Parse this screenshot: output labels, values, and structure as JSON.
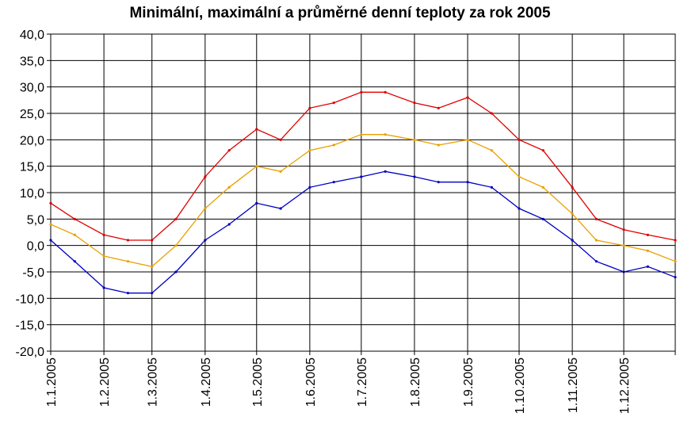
{
  "chart_data": {
    "type": "line",
    "title": "Minimální, maximální a průměrné denní teploty za rok 2005",
    "xlabel": "",
    "ylabel": "",
    "ylim": [
      -20,
      40
    ],
    "yticks": [
      "-20,0",
      "-15,0",
      "-10,0",
      "-5,0",
      "0,0",
      "5,0",
      "10,0",
      "15,0",
      "20,0",
      "25,0",
      "30,0",
      "35,0",
      "40,0"
    ],
    "x_range": [
      "1.1.2005",
      "31.12.2005"
    ],
    "x_tick_labels": [
      "1.1.2005",
      "1.2.2005",
      "1.3.2005",
      "1.4.2005",
      "1.5.2005",
      "1.6.2005",
      "1.7.2005",
      "1.8.2005",
      "1.9.2005",
      "1.10.2005",
      "1.11.2005",
      "1.12.2005"
    ],
    "grid": true,
    "colors": {
      "max": "#e00000",
      "avg": "#e8a000",
      "min": "#0000c0"
    },
    "series_meta": [
      {
        "key": "max",
        "color": "#e00000"
      },
      {
        "key": "avg",
        "color": "#e8a000"
      },
      {
        "key": "min",
        "color": "#0000c0"
      }
    ],
    "monthly_max": [
      {
        "x": "1.1.2005",
        "y": 8
      },
      {
        "x": "15.1.2005",
        "y": 5
      },
      {
        "x": "1.2.2005",
        "y": 2
      },
      {
        "x": "15.2.2005",
        "y": 1
      },
      {
        "x": "1.3.2005",
        "y": 1
      },
      {
        "x": "15.3.2005",
        "y": 5
      },
      {
        "x": "1.4.2005",
        "y": 13
      },
      {
        "x": "15.4.2005",
        "y": 18
      },
      {
        "x": "1.5.2005",
        "y": 22
      },
      {
        "x": "15.5.2005",
        "y": 20
      },
      {
        "x": "1.6.2005",
        "y": 26
      },
      {
        "x": "15.6.2005",
        "y": 27
      },
      {
        "x": "1.7.2005",
        "y": 29
      },
      {
        "x": "15.7.2005",
        "y": 29
      },
      {
        "x": "1.8.2005",
        "y": 27
      },
      {
        "x": "15.8.2005",
        "y": 26
      },
      {
        "x": "1.9.2005",
        "y": 28
      },
      {
        "x": "15.9.2005",
        "y": 25
      },
      {
        "x": "1.10.2005",
        "y": 20
      },
      {
        "x": "15.10.2005",
        "y": 18
      },
      {
        "x": "1.11.2005",
        "y": 11
      },
      {
        "x": "15.11.2005",
        "y": 5
      },
      {
        "x": "1.12.2005",
        "y": 3
      },
      {
        "x": "15.12.2005",
        "y": 2
      },
      {
        "x": "31.12.2005",
        "y": 1
      }
    ],
    "monthly_avg": [
      {
        "x": "1.1.2005",
        "y": 4
      },
      {
        "x": "15.1.2005",
        "y": 2
      },
      {
        "x": "1.2.2005",
        "y": -2
      },
      {
        "x": "15.2.2005",
        "y": -3
      },
      {
        "x": "1.3.2005",
        "y": -4
      },
      {
        "x": "15.3.2005",
        "y": 0
      },
      {
        "x": "1.4.2005",
        "y": 7
      },
      {
        "x": "15.4.2005",
        "y": 11
      },
      {
        "x": "1.5.2005",
        "y": 15
      },
      {
        "x": "15.5.2005",
        "y": 14
      },
      {
        "x": "1.6.2005",
        "y": 18
      },
      {
        "x": "15.6.2005",
        "y": 19
      },
      {
        "x": "1.7.2005",
        "y": 21
      },
      {
        "x": "15.7.2005",
        "y": 21
      },
      {
        "x": "1.8.2005",
        "y": 20
      },
      {
        "x": "15.8.2005",
        "y": 19
      },
      {
        "x": "1.9.2005",
        "y": 20
      },
      {
        "x": "15.9.2005",
        "y": 18
      },
      {
        "x": "1.10.2005",
        "y": 13
      },
      {
        "x": "15.10.2005",
        "y": 11
      },
      {
        "x": "1.11.2005",
        "y": 6
      },
      {
        "x": "15.11.2005",
        "y": 1
      },
      {
        "x": "1.12.2005",
        "y": 0
      },
      {
        "x": "15.12.2005",
        "y": -1
      },
      {
        "x": "31.12.2005",
        "y": -3
      }
    ],
    "monthly_min": [
      {
        "x": "1.1.2005",
        "y": 1
      },
      {
        "x": "15.1.2005",
        "y": -3
      },
      {
        "x": "1.2.2005",
        "y": -8
      },
      {
        "x": "15.2.2005",
        "y": -9
      },
      {
        "x": "1.3.2005",
        "y": -9
      },
      {
        "x": "15.3.2005",
        "y": -5
      },
      {
        "x": "1.4.2005",
        "y": 1
      },
      {
        "x": "15.4.2005",
        "y": 4
      },
      {
        "x": "1.5.2005",
        "y": 8
      },
      {
        "x": "15.5.2005",
        "y": 7
      },
      {
        "x": "1.6.2005",
        "y": 11
      },
      {
        "x": "15.6.2005",
        "y": 12
      },
      {
        "x": "1.7.2005",
        "y": 13
      },
      {
        "x": "15.7.2005",
        "y": 14
      },
      {
        "x": "1.8.2005",
        "y": 13
      },
      {
        "x": "15.8.2005",
        "y": 12
      },
      {
        "x": "1.9.2005",
        "y": 12
      },
      {
        "x": "15.9.2005",
        "y": 11
      },
      {
        "x": "1.10.2005",
        "y": 7
      },
      {
        "x": "15.10.2005",
        "y": 5
      },
      {
        "x": "1.11.2005",
        "y": 1
      },
      {
        "x": "15.11.2005",
        "y": -3
      },
      {
        "x": "1.12.2005",
        "y": -5
      },
      {
        "x": "15.12.2005",
        "y": -4
      },
      {
        "x": "31.12.2005",
        "y": -6
      }
    ]
  }
}
